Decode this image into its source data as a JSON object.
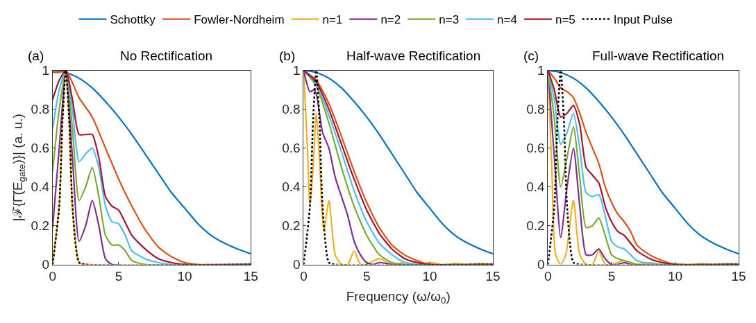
{
  "chart_data": [
    {
      "type": "line",
      "title": "No Rectification",
      "annotations": [
        "(a)"
      ],
      "ylabel": "|ℱ{Γ̃(E$_{gate}$)}| (a. u.)",
      "xlim": [
        0,
        15
      ],
      "ylim": [
        0,
        1
      ],
      "xticks": [
        0,
        5,
        10,
        15
      ],
      "yticks": [
        0,
        0.2,
        0.4,
        0.6,
        0.8,
        1
      ],
      "legend": "top",
      "series": [
        {
          "name": "Schottky",
          "color": "#0072bd",
          "x": [
            0,
            1,
            2,
            3,
            4,
            5,
            6,
            7,
            8,
            9,
            10,
            11,
            12,
            13,
            14,
            15
          ],
          "values": [
            1,
            0.99,
            0.96,
            0.91,
            0.84,
            0.76,
            0.67,
            0.57,
            0.47,
            0.37,
            0.29,
            0.21,
            0.15,
            0.11,
            0.08,
            0.055
          ]
        },
        {
          "name": "Fowler-Nordheim",
          "color": "#d95319",
          "x": [
            0,
            0.5,
            1,
            2,
            3,
            4,
            5,
            6,
            7,
            8,
            9,
            10,
            11,
            15
          ],
          "values": [
            0.99,
            0.99,
            1,
            0.86,
            0.76,
            0.6,
            0.44,
            0.3,
            0.18,
            0.09,
            0.04,
            0.01,
            0,
            0
          ]
        },
        {
          "name": "n=1",
          "color": "#edb120",
          "x": [
            0,
            0.5,
            0.75,
            1,
            1.25,
            1.5,
            2,
            2.5,
            15
          ],
          "values": [
            0,
            0.3,
            0.75,
            1,
            0.75,
            0.3,
            0.01,
            0,
            0
          ]
        },
        {
          "name": "n=2",
          "color": "#7e2f8e",
          "x": [
            0,
            0.5,
            1,
            1.5,
            2,
            2.5,
            3,
            3.5,
            4,
            4.5,
            15
          ],
          "values": [
            0.19,
            0.6,
            1,
            0.55,
            0.12,
            0.2,
            0.33,
            0.2,
            0.03,
            0,
            0
          ]
        },
        {
          "name": "n=3",
          "color": "#77ac30",
          "x": [
            0,
            0.5,
            1,
            1.5,
            2,
            2.5,
            3,
            3.5,
            4,
            4.5,
            5,
            5.5,
            6,
            7,
            15
          ],
          "values": [
            0.48,
            0.8,
            1,
            0.7,
            0.33,
            0.4,
            0.5,
            0.35,
            0.15,
            0.1,
            0.1,
            0.07,
            0.02,
            0,
            0
          ]
        },
        {
          "name": "n=4",
          "color": "#4dbeee",
          "x": [
            0,
            0.5,
            1,
            1.5,
            2,
            2.5,
            3,
            3.5,
            4,
            4.5,
            5,
            5.5,
            6,
            7,
            8,
            9,
            15
          ],
          "values": [
            0.7,
            0.9,
            1,
            0.8,
            0.53,
            0.57,
            0.6,
            0.5,
            0.3,
            0.22,
            0.21,
            0.15,
            0.07,
            0.03,
            0.01,
            0,
            0
          ]
        },
        {
          "name": "n=5",
          "color": "#a2142f",
          "x": [
            0,
            0.5,
            1,
            1.5,
            2,
            2.5,
            3,
            3.5,
            4,
            4.5,
            5,
            6,
            7,
            8,
            9,
            10,
            15
          ],
          "values": [
            0.85,
            0.95,
            1,
            0.85,
            0.67,
            0.67,
            0.67,
            0.55,
            0.35,
            0.3,
            0.28,
            0.15,
            0.08,
            0.03,
            0.01,
            0,
            0
          ]
        },
        {
          "name": "Input Pulse",
          "color": "#000000",
          "line_style": "dotted",
          "x": [
            0,
            0.5,
            0.75,
            1,
            1.25,
            1.5,
            2,
            2.5,
            15
          ],
          "values": [
            0,
            0.3,
            0.75,
            1,
            0.75,
            0.3,
            0.01,
            0,
            0
          ]
        }
      ]
    },
    {
      "type": "line",
      "title": "Half-wave Rectification",
      "annotations": [
        "(b)"
      ],
      "xlabel": "Frequency (ω/ω$_{0}$)",
      "xlim": [
        0,
        15
      ],
      "ylim": [
        0,
        1
      ],
      "xticks": [
        0,
        5,
        10,
        15
      ],
      "yticks": [
        0,
        0.2,
        0.4,
        0.6,
        0.8,
        1
      ],
      "series": [
        {
          "color": "#0072bd",
          "x": [
            0,
            1,
            2,
            3,
            4,
            5,
            6,
            7,
            8,
            9,
            10,
            11,
            12,
            13,
            14,
            15
          ],
          "values": [
            1,
            0.99,
            0.96,
            0.91,
            0.84,
            0.76,
            0.67,
            0.57,
            0.47,
            0.37,
            0.29,
            0.21,
            0.15,
            0.11,
            0.08,
            0.055
          ]
        },
        {
          "color": "#d95319",
          "x": [
            0,
            1,
            2,
            3,
            4,
            5,
            6,
            7,
            8,
            9,
            10,
            15
          ],
          "values": [
            1,
            0.95,
            0.83,
            0.66,
            0.48,
            0.32,
            0.19,
            0.1,
            0.05,
            0.02,
            0,
            0
          ]
        },
        {
          "color": "#edb120",
          "x": [
            0,
            0.3,
            0.5,
            0.75,
            1,
            1.25,
            1.6,
            2,
            2.5,
            3,
            3.5,
            4,
            4.5,
            5,
            6,
            7,
            8,
            9,
            10,
            11,
            12,
            13,
            14,
            15
          ],
          "values": [
            1,
            0.6,
            0.3,
            0.5,
            0.78,
            0.55,
            0.17,
            0.33,
            0.05,
            0,
            0,
            0.07,
            0,
            0,
            0.03,
            0,
            0.01,
            0,
            0.01,
            0,
            0.005,
            0,
            0.005,
            0
          ]
        },
        {
          "color": "#7e2f8e",
          "x": [
            0,
            0.5,
            0.8,
            1,
            1.5,
            2,
            2.5,
            3,
            3.5,
            4,
            4.5,
            5,
            5.5,
            6,
            7,
            15
          ],
          "values": [
            1,
            0.89,
            0.9,
            0.88,
            0.68,
            0.6,
            0.45,
            0.35,
            0.25,
            0.12,
            0.05,
            0.01,
            0,
            0.01,
            0,
            0
          ]
        },
        {
          "color": "#77ac30",
          "x": [
            0,
            1,
            2,
            3,
            4,
            5,
            6,
            7,
            8,
            15
          ],
          "values": [
            1,
            0.92,
            0.73,
            0.5,
            0.3,
            0.15,
            0.05,
            0.01,
            0,
            0
          ]
        },
        {
          "color": "#4dbeee",
          "x": [
            0,
            1,
            2,
            3,
            4,
            5,
            6,
            7,
            8,
            9,
            15
          ],
          "values": [
            1,
            0.93,
            0.77,
            0.58,
            0.38,
            0.22,
            0.11,
            0.05,
            0.01,
            0,
            0
          ]
        },
        {
          "color": "#a2142f",
          "x": [
            0,
            1,
            2,
            3,
            4,
            5,
            6,
            7,
            8,
            9,
            10,
            15
          ],
          "values": [
            1,
            0.94,
            0.8,
            0.62,
            0.44,
            0.28,
            0.16,
            0.08,
            0.03,
            0.01,
            0,
            0
          ]
        },
        {
          "color": "#000000",
          "line_style": "dotted",
          "x": [
            0,
            0.5,
            0.75,
            1,
            1.25,
            1.5,
            2,
            2.5,
            15
          ],
          "values": [
            0,
            0.3,
            0.75,
            1,
            0.75,
            0.3,
            0.01,
            0,
            0
          ]
        }
      ]
    },
    {
      "type": "line",
      "title": "Full-wave Rectification",
      "annotations": [
        "(c)"
      ],
      "xlim": [
        0,
        15
      ],
      "ylim": [
        0,
        1
      ],
      "xticks": [
        0,
        5,
        10,
        15
      ],
      "yticks": [
        0,
        0.2,
        0.4,
        0.6,
        0.8,
        1
      ],
      "series": [
        {
          "color": "#0072bd",
          "x": [
            0,
            1,
            2,
            3,
            4,
            5,
            6,
            7,
            8,
            9,
            10,
            11,
            12,
            13,
            14,
            15
          ],
          "values": [
            1,
            0.99,
            0.96,
            0.91,
            0.84,
            0.76,
            0.67,
            0.57,
            0.47,
            0.37,
            0.29,
            0.21,
            0.15,
            0.11,
            0.08,
            0.055
          ]
        },
        {
          "color": "#d95319",
          "x": [
            0,
            0.5,
            1,
            1.5,
            2,
            2.5,
            3,
            3.5,
            4,
            4.5,
            5,
            5.5,
            6,
            6.5,
            7,
            8,
            9,
            10,
            15
          ],
          "values": [
            1,
            0.96,
            0.91,
            0.89,
            0.86,
            0.78,
            0.68,
            0.6,
            0.52,
            0.4,
            0.32,
            0.26,
            0.22,
            0.17,
            0.1,
            0.05,
            0.02,
            0,
            0
          ]
        },
        {
          "color": "#edb120",
          "x": [
            0,
            0.3,
            0.6,
            1,
            1.4,
            2,
            2.5,
            3,
            3.5,
            4,
            4.5,
            5,
            6,
            7,
            8,
            9,
            10,
            11,
            12,
            13,
            14,
            15
          ],
          "values": [
            1,
            0.5,
            0.05,
            0,
            0.05,
            0.33,
            0.05,
            0,
            0,
            0.07,
            0,
            0,
            0.02,
            0,
            0.01,
            0,
            0.005,
            0,
            0.005,
            0,
            0.005,
            0
          ]
        },
        {
          "color": "#7e2f8e",
          "x": [
            0,
            0.5,
            1,
            1.5,
            2,
            2.5,
            3,
            3.5,
            4,
            4.5,
            5,
            5.5,
            6,
            6.5,
            15
          ],
          "values": [
            1,
            0.55,
            0.14,
            0.4,
            0.6,
            0.3,
            0.05,
            0.05,
            0.08,
            0.03,
            0,
            0,
            0.01,
            0,
            0
          ]
        },
        {
          "color": "#77ac30",
          "x": [
            0,
            0.5,
            1,
            1.5,
            2,
            2.5,
            3,
            3.5,
            4,
            4.5,
            5,
            5.5,
            6,
            7,
            15
          ],
          "values": [
            1,
            0.75,
            0.4,
            0.55,
            0.71,
            0.45,
            0.19,
            0.2,
            0.24,
            0.15,
            0.05,
            0.03,
            0.02,
            0,
            0
          ]
        },
        {
          "color": "#4dbeee",
          "x": [
            0,
            0.5,
            1,
            1.5,
            2,
            2.5,
            3,
            3.5,
            4,
            4.5,
            5,
            5.5,
            6,
            6.5,
            7,
            8,
            9,
            15
          ],
          "values": [
            1,
            0.85,
            0.62,
            0.68,
            0.78,
            0.6,
            0.37,
            0.35,
            0.36,
            0.25,
            0.12,
            0.09,
            0.08,
            0.05,
            0.02,
            0.005,
            0,
            0
          ]
        },
        {
          "color": "#a2142f",
          "x": [
            0,
            0.5,
            1,
            1.5,
            2,
            2.5,
            3,
            3.5,
            4,
            4.5,
            5,
            5.5,
            6,
            6.5,
            7,
            8,
            9,
            10,
            15
          ],
          "values": [
            1,
            0.9,
            0.76,
            0.78,
            0.82,
            0.72,
            0.5,
            0.46,
            0.42,
            0.3,
            0.22,
            0.17,
            0.15,
            0.11,
            0.07,
            0.03,
            0.01,
            0,
            0
          ]
        },
        {
          "color": "#000000",
          "line_style": "dotted",
          "x": [
            0,
            0.5,
            0.75,
            1,
            1.25,
            1.5,
            2,
            2.5,
            15
          ],
          "values": [
            0,
            0.3,
            0.75,
            1,
            0.75,
            0.3,
            0.01,
            0,
            0
          ]
        }
      ]
    }
  ]
}
